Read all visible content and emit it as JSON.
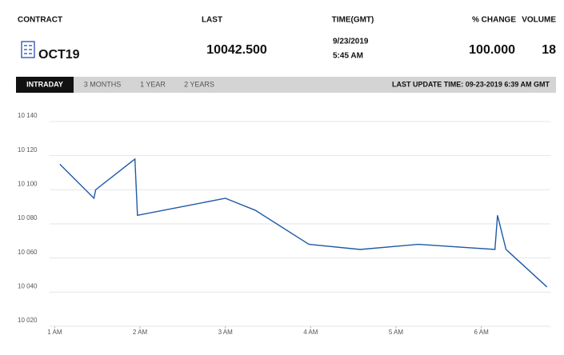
{
  "header": {
    "contract_label": "CONTRACT",
    "last_label": "LAST",
    "time_label": "TIME(GMT)",
    "change_label": "% CHANGE",
    "volume_label": "VOLUME",
    "contract": "OCT19",
    "last": "10042.500",
    "date": "9/23/2019",
    "time": "5:45 AM",
    "change": "100.000",
    "volume": "18"
  },
  "tabs": [
    "INTRADAY",
    "3 MONTHS",
    "1 YEAR",
    "2 YEARS"
  ],
  "last_update": "LAST UPDATE TIME: 09-23-2019 6:39 AM GMT",
  "chart_data": {
    "type": "line",
    "x": [
      1.06,
      1.46,
      1.48,
      1.94,
      1.97,
      3.0,
      3.35,
      3.98,
      4.58,
      5.26,
      6.16,
      6.19,
      6.29,
      6.77
    ],
    "series": [
      {
        "color": "#1f5aa6",
        "values": [
          10115,
          10095,
          10100,
          10118,
          10085,
          10095,
          10088,
          10068,
          10065,
          10068,
          10065,
          10085,
          10065,
          10043
        ]
      }
    ],
    "xlim": [
      0.94,
      6.81
    ],
    "xticks": [
      {
        "value": 1,
        "label": "1 AM"
      },
      {
        "value": 2,
        "label": "2 AM"
      },
      {
        "value": 3,
        "label": "3 AM"
      },
      {
        "value": 4,
        "label": "4 AM"
      },
      {
        "value": 5,
        "label": "5 AM"
      },
      {
        "value": 6,
        "label": "6 AM"
      }
    ],
    "ylim": [
      10020,
      10140
    ],
    "yticks": [
      {
        "value": 10020,
        "label": "10 020"
      },
      {
        "value": 10040,
        "label": "10 040"
      },
      {
        "value": 10060,
        "label": "10 060"
      },
      {
        "value": 10080,
        "label": "10 080"
      },
      {
        "value": 10100,
        "label": "10 100"
      },
      {
        "value": 10120,
        "label": "10 120"
      },
      {
        "value": 10140,
        "label": "10 140"
      }
    ],
    "grid": true
  }
}
